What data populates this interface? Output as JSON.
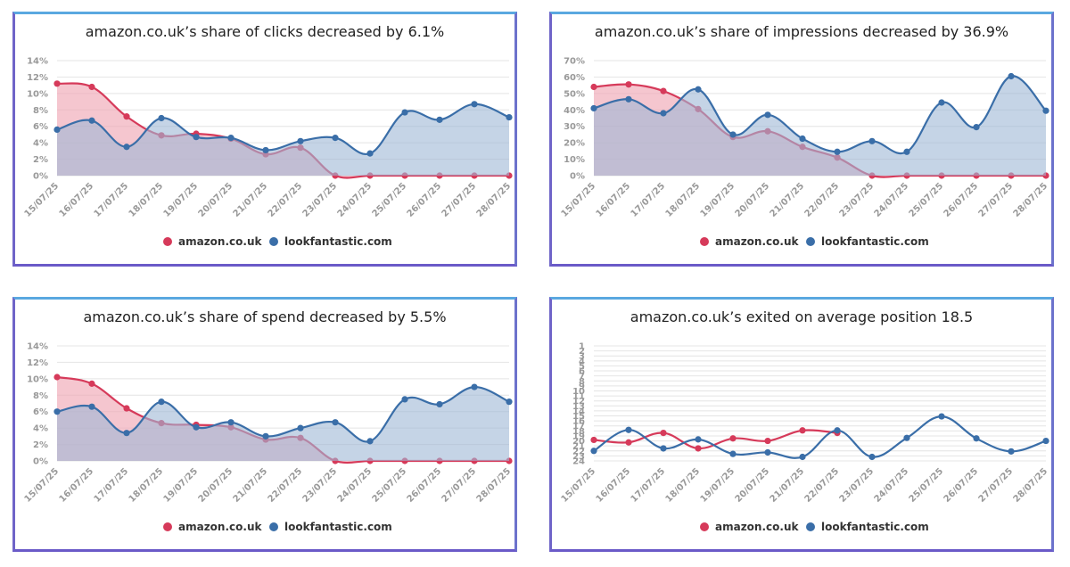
{
  "colors": {
    "amazon": "#d63a5a",
    "amazon_fill": "#f0a7b6",
    "lookfantastic": "#3a6ea8",
    "lookfantastic_fill": "#9fb8d6",
    "overlap": "#a07aa0"
  },
  "chart_data": [
    {
      "type": "area",
      "title": "amazon.co.uk’s share of clicks decreased by 6.1%",
      "x": [
        "15/07/25",
        "16/07/25",
        "17/07/25",
        "18/07/25",
        "19/07/25",
        "20/07/25",
        "21/07/25",
        "22/07/25",
        "23/07/25",
        "24/07/25",
        "25/07/25",
        "26/07/25",
        "27/07/25",
        "28/07/25"
      ],
      "yticks": [
        "0%",
        "2%",
        "4%",
        "6%",
        "8%",
        "10%",
        "12%",
        "14%"
      ],
      "ylim": [
        0,
        14
      ],
      "grid": true,
      "legend": "bottom",
      "series": [
        {
          "name": "amazon.co.uk",
          "values": [
            11.2,
            10.8,
            7.2,
            4.9,
            5.1,
            4.5,
            2.6,
            3.4,
            0,
            0,
            0,
            0,
            0,
            0
          ]
        },
        {
          "name": "lookfantastic.com",
          "values": [
            5.6,
            6.7,
            3.5,
            7.0,
            4.7,
            4.6,
            3.1,
            4.2,
            4.6,
            2.7,
            7.7,
            6.8,
            8.7,
            7.1
          ]
        }
      ]
    },
    {
      "type": "area",
      "title": "amazon.co.uk’s share of impressions decreased by 36.9%",
      "x": [
        "15/07/25",
        "16/07/25",
        "17/07/25",
        "18/07/25",
        "19/07/25",
        "20/07/25",
        "21/07/25",
        "22/07/25",
        "23/07/25",
        "24/07/25",
        "25/07/25",
        "26/07/25",
        "27/07/25",
        "28/07/25"
      ],
      "yticks": [
        "0%",
        "10%",
        "20%",
        "30%",
        "40%",
        "50%",
        "60%",
        "70%"
      ],
      "ylim": [
        0,
        70
      ],
      "grid": true,
      "legend": "bottom",
      "series": [
        {
          "name": "amazon.co.uk",
          "values": [
            54,
            55.5,
            51.5,
            40.5,
            23.5,
            27,
            17.5,
            11,
            0,
            0,
            0,
            0,
            0,
            0
          ]
        },
        {
          "name": "lookfantastic.com",
          "values": [
            41,
            46.5,
            38,
            52.5,
            25,
            37,
            22.5,
            14.5,
            21,
            14.5,
            44.5,
            29.5,
            60.5,
            39.5
          ]
        }
      ]
    },
    {
      "type": "area",
      "title": "amazon.co.uk’s share of spend decreased by 5.5%",
      "x": [
        "15/07/25",
        "16/07/25",
        "17/07/25",
        "18/07/25",
        "19/07/25",
        "20/07/25",
        "21/07/25",
        "22/07/25",
        "23/07/25",
        "24/07/25",
        "25/07/25",
        "26/07/25",
        "27/07/25",
        "28/07/25"
      ],
      "yticks": [
        "0%",
        "2%",
        "4%",
        "6%",
        "8%",
        "10%",
        "12%",
        "14%"
      ],
      "ylim": [
        0,
        14
      ],
      "grid": true,
      "legend": "bottom",
      "series": [
        {
          "name": "amazon.co.uk",
          "values": [
            10.2,
            9.4,
            6.4,
            4.6,
            4.4,
            4.1,
            2.6,
            2.8,
            0,
            0,
            0,
            0,
            0,
            0
          ]
        },
        {
          "name": "lookfantastic.com",
          "values": [
            6.0,
            6.6,
            3.4,
            7.2,
            4.1,
            4.7,
            3.0,
            4.0,
            4.7,
            2.4,
            7.5,
            6.9,
            9.0,
            7.2
          ]
        }
      ]
    },
    {
      "type": "line",
      "title": "amazon.co.uk’s exited on average position 18.5",
      "x": [
        "15/07/25",
        "16/07/25",
        "17/07/25",
        "18/07/25",
        "19/07/25",
        "20/07/25",
        "21/07/25",
        "22/07/25",
        "23/07/25",
        "24/07/25",
        "25/07/25",
        "26/07/25",
        "27/07/25",
        "28/07/25"
      ],
      "yticks": [
        "1",
        "2",
        "3",
        "4",
        "5",
        "6",
        "7",
        "8",
        "9",
        "10",
        "11",
        "12",
        "13",
        "14",
        "15",
        "16",
        "17",
        "18",
        "19",
        "20",
        "21",
        "22",
        "23",
        "24"
      ],
      "ylim": [
        1,
        24
      ],
      "reversed_y": true,
      "grid": true,
      "legend": "bottom",
      "series": [
        {
          "name": "amazon.co.uk",
          "values": [
            19.8,
            20.3,
            18.4,
            21.5,
            19.5,
            20,
            17.9,
            18.4,
            null,
            null,
            null,
            null,
            null,
            null
          ]
        },
        {
          "name": "lookfantastic.com",
          "values": [
            22,
            17.8,
            21.5,
            19.7,
            22.6,
            22.3,
            23.2,
            17.9,
            23.2,
            19.4,
            15.1,
            19.5,
            22.1,
            20
          ]
        }
      ]
    }
  ]
}
